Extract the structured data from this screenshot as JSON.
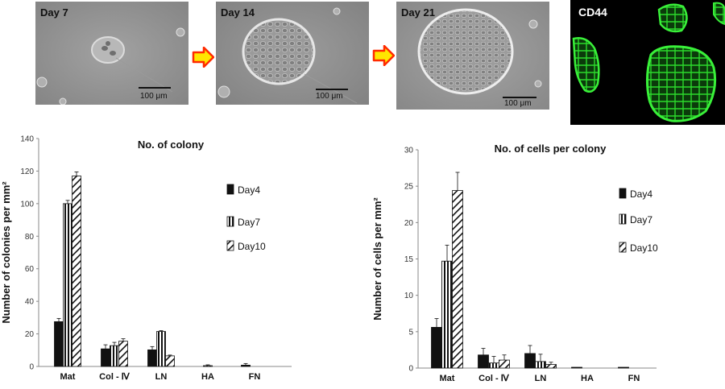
{
  "micrographs": [
    {
      "label": "Day 7",
      "scale": "100 μm"
    },
    {
      "label": "Day 14",
      "scale": "100 μm"
    },
    {
      "label": "Day 21",
      "scale": "100 μm"
    }
  ],
  "fluorescence": {
    "label": "CD44",
    "color": "#2bd92b"
  },
  "arrow_color": "#ff2a00",
  "arrow_fill": "#ffe600",
  "chart_data": [
    {
      "type": "bar",
      "title": "No. of colony",
      "ylabel": "Number of colonies per mm²",
      "xlabel": "",
      "categories": [
        "Mat",
        "Col - Ⅳ",
        "LN",
        "HA",
        "FN"
      ],
      "ylim": [
        0,
        140
      ],
      "yticks": [
        0,
        20,
        40,
        60,
        80,
        100,
        120,
        140
      ],
      "series": [
        {
          "name": "Day4",
          "values": [
            27.5,
            10.8,
            10.2,
            0,
            0.8
          ],
          "errors": [
            2.0,
            2.5,
            2.0,
            0,
            1.0
          ]
        },
        {
          "name": "Day7",
          "values": [
            100.0,
            12.8,
            21.5,
            0.5,
            0
          ],
          "errors": [
            2.0,
            2.0,
            0.5,
            0.5,
            0
          ]
        },
        {
          "name": "Day10",
          "values": [
            117.0,
            15.5,
            6.5,
            0,
            0
          ],
          "errors": [
            2.5,
            1.5,
            0.5,
            0,
            0
          ]
        }
      ],
      "legend": "right"
    },
    {
      "type": "bar",
      "title": "No. of cells per colony",
      "ylabel": "Number of cells per mm²",
      "xlabel": "",
      "categories": [
        "Mat",
        "Col - Ⅳ",
        "LN",
        "HA",
        "FN"
      ],
      "ylim": [
        0,
        30
      ],
      "yticks": [
        0,
        5,
        10,
        15,
        20,
        25,
        30
      ],
      "series": [
        {
          "name": "Day4",
          "values": [
            5.6,
            1.8,
            2.0,
            0.05,
            0.08
          ],
          "errors": [
            1.2,
            0.9,
            1.1,
            0,
            0
          ]
        },
        {
          "name": "Day7",
          "values": [
            14.7,
            0.7,
            0.9,
            0,
            0
          ],
          "errors": [
            2.2,
            0.9,
            1.0,
            0,
            0
          ]
        },
        {
          "name": "Day10",
          "values": [
            24.4,
            1.1,
            0.5,
            0,
            0
          ],
          "errors": [
            2.5,
            0.7,
            0.3,
            0,
            0
          ]
        }
      ],
      "legend": "right"
    }
  ]
}
